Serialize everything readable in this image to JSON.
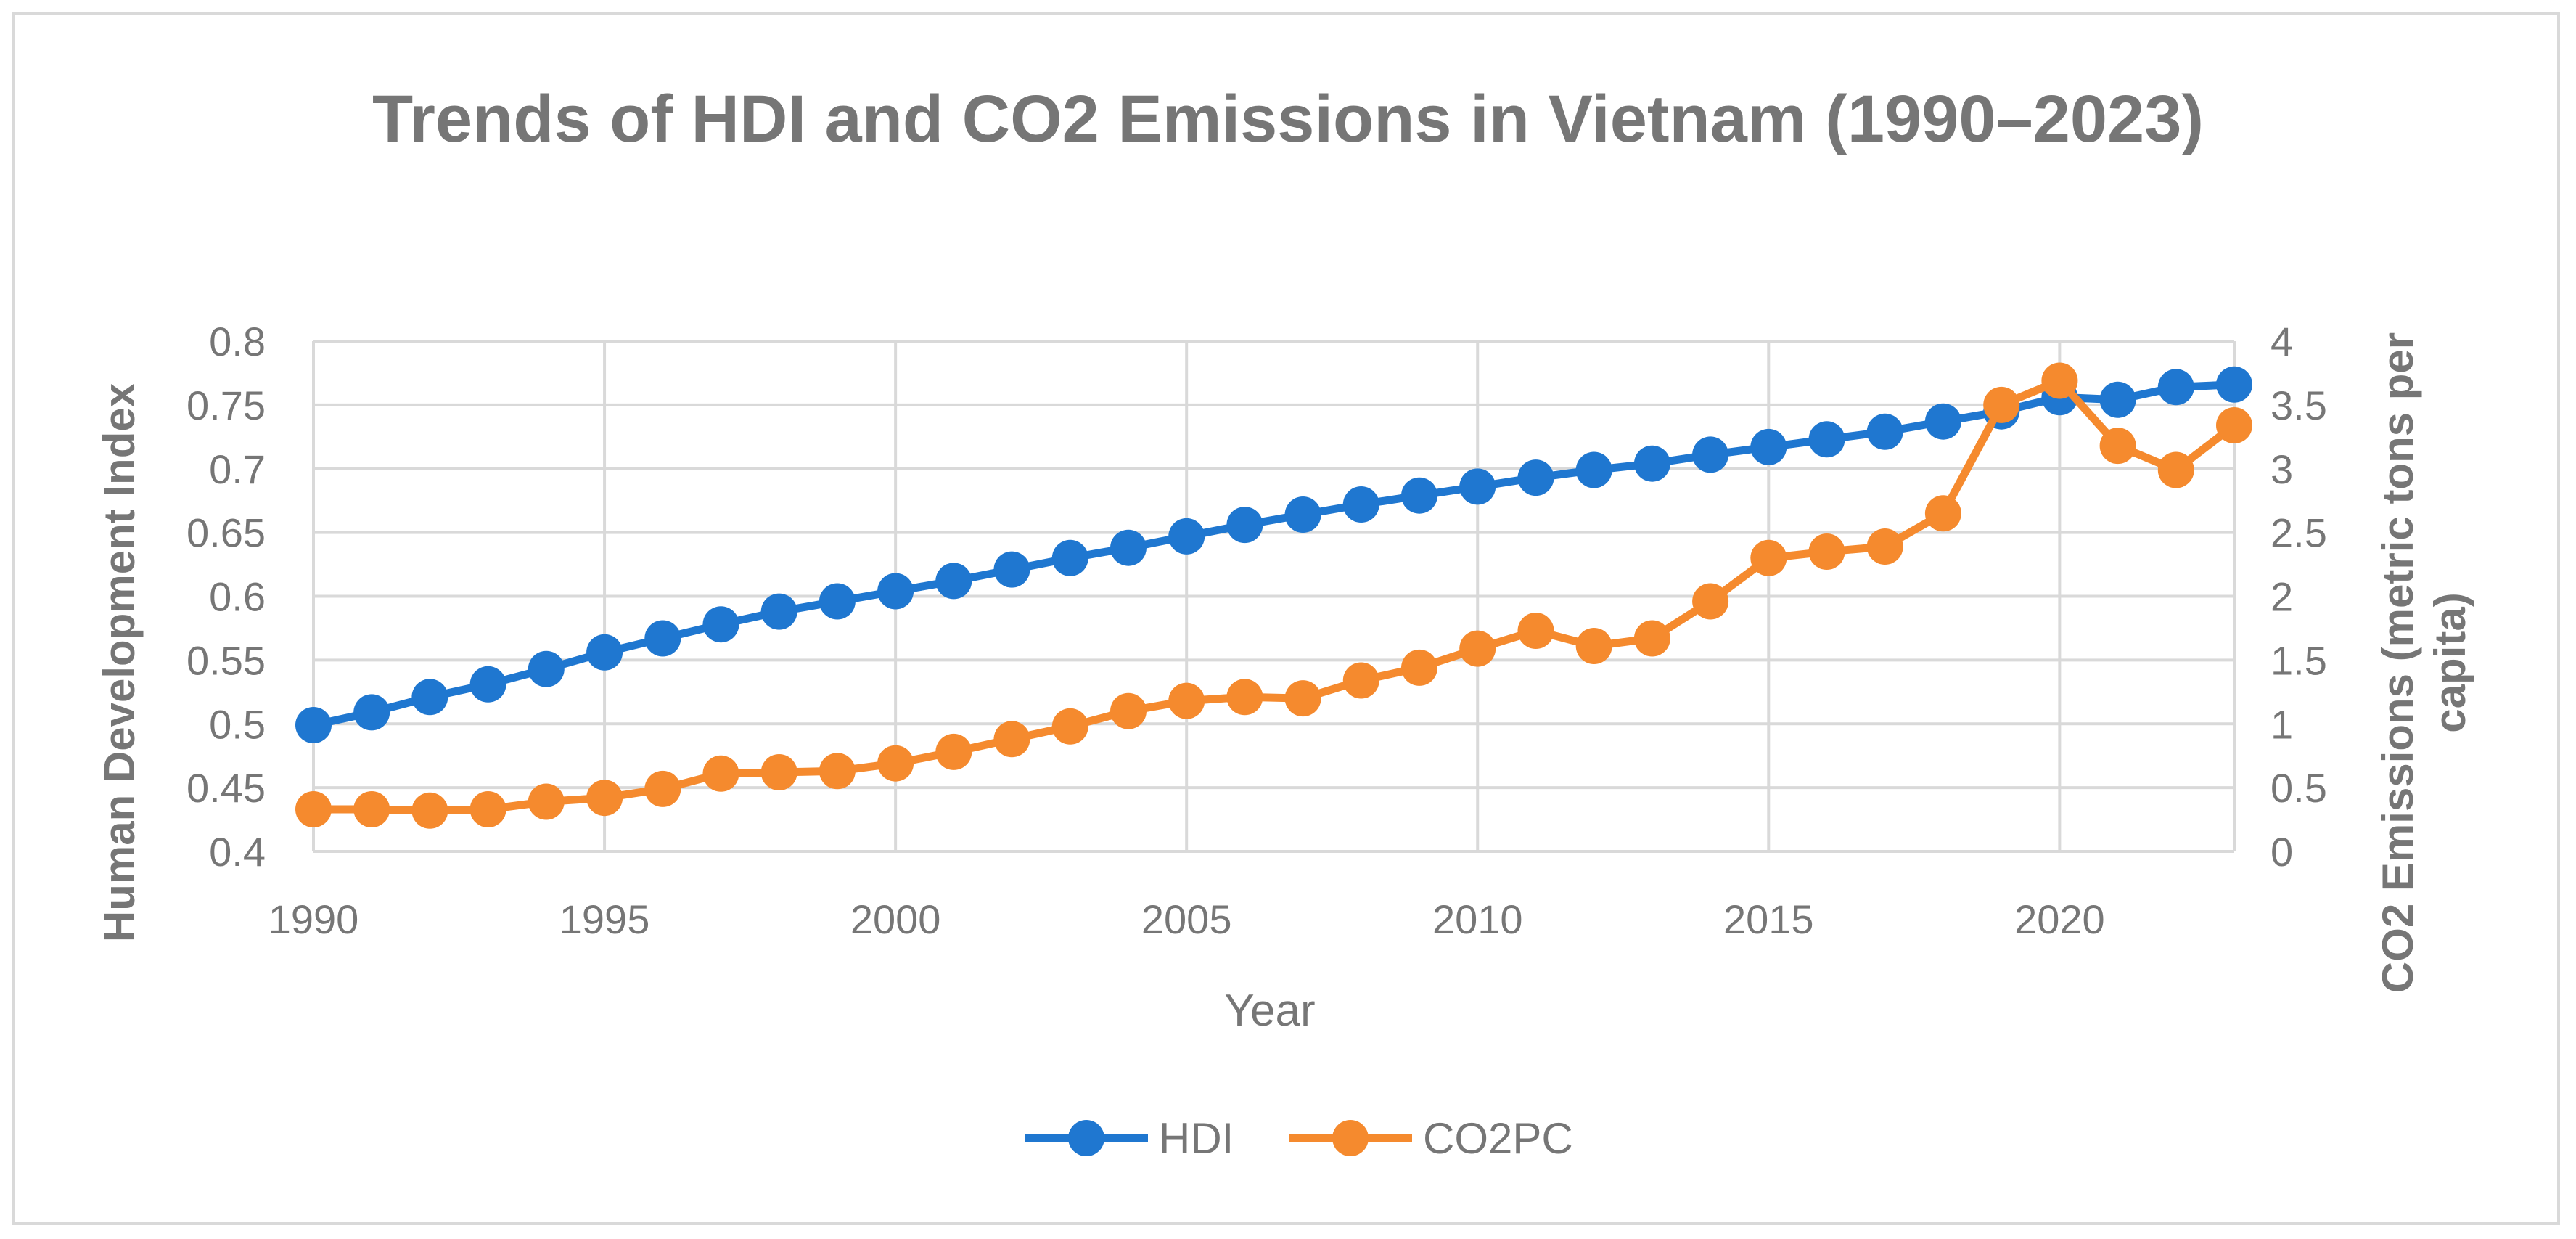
{
  "chart_data": {
    "type": "line",
    "title": "Trends of HDI and CO2 Emissions in Vietnam (1990–2023)",
    "xlabel": "Year",
    "ylabel_left": "Human Development Index",
    "ylabel_right": [
      "CO2 Emissions (metric tons per",
      "capita)"
    ],
    "x": [
      1990,
      1991,
      1992,
      1993,
      1994,
      1995,
      1996,
      1997,
      1998,
      1999,
      2000,
      2001,
      2002,
      2003,
      2004,
      2005,
      2006,
      2007,
      2008,
      2009,
      2010,
      2011,
      2012,
      2013,
      2014,
      2015,
      2016,
      2017,
      2018,
      2019,
      2020,
      2021,
      2022,
      2023
    ],
    "x_ticks": [
      1990,
      1995,
      2000,
      2005,
      2010,
      2015,
      2020
    ],
    "y_left_lim": [
      0.4,
      0.8
    ],
    "y_left_ticks": [
      "0.4",
      "0.45",
      "0.5",
      "0.55",
      "0.6",
      "0.65",
      "0.7",
      "0.75",
      "0.8"
    ],
    "y_right_lim": [
      0,
      4
    ],
    "y_right_ticks": [
      "0",
      "0.5",
      "1",
      "1.5",
      "2",
      "2.5",
      "3",
      "3.5",
      "4"
    ],
    "grid": true,
    "legend_position": "bottom",
    "series": [
      {
        "name": "HDI",
        "axis": "left",
        "color": "#1f77d0",
        "values": [
          0.499,
          0.509,
          0.521,
          0.531,
          0.543,
          0.556,
          0.567,
          0.578,
          0.588,
          0.596,
          0.604,
          0.612,
          0.621,
          0.63,
          0.638,
          0.647,
          0.656,
          0.664,
          0.672,
          0.679,
          0.686,
          0.693,
          0.699,
          0.704,
          0.711,
          0.717,
          0.723,
          0.729,
          0.737,
          0.745,
          0.756,
          0.754,
          0.764,
          0.766
        ]
      },
      {
        "name": "CO2PC",
        "axis": "right",
        "color": "#f58a2e",
        "values": [
          0.33,
          0.33,
          0.32,
          0.33,
          0.39,
          0.42,
          0.49,
          0.61,
          0.62,
          0.63,
          0.69,
          0.78,
          0.88,
          0.98,
          1.1,
          1.18,
          1.21,
          1.2,
          1.34,
          1.44,
          1.59,
          1.73,
          1.61,
          1.67,
          1.96,
          2.3,
          2.35,
          2.39,
          2.65,
          3.5,
          3.69,
          3.18,
          2.99,
          3.34
        ]
      }
    ]
  }
}
